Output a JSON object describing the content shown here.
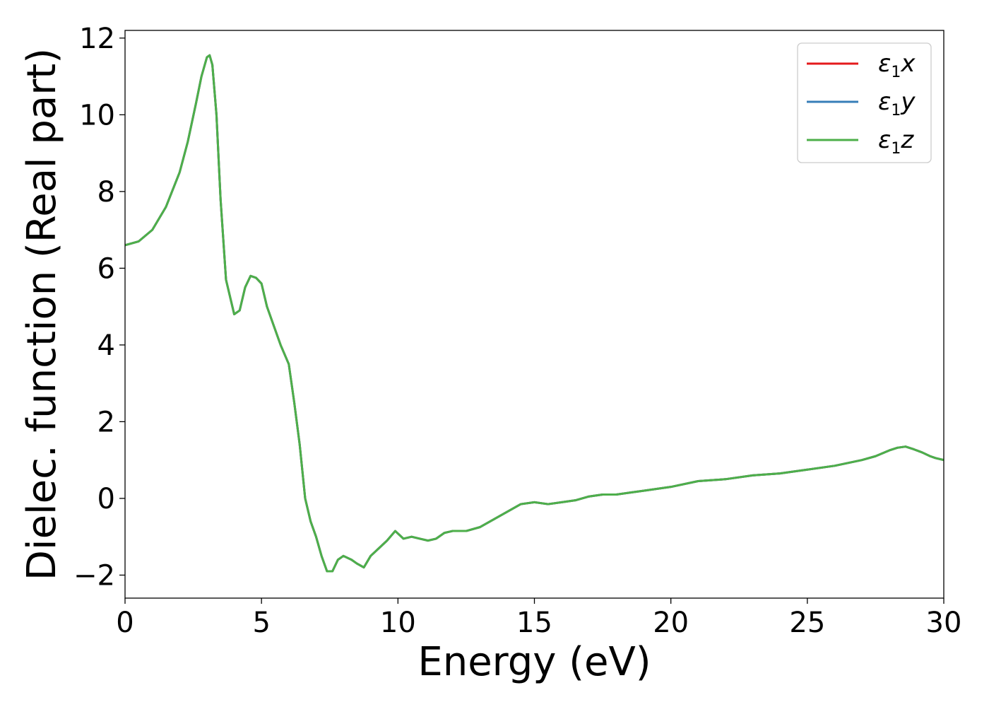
{
  "chart_data": {
    "type": "line",
    "xlabel": "Energy (eV)",
    "ylabel": "Dielec. function (Real part)",
    "xlim": [
      0,
      30
    ],
    "ylim": [
      -2.6,
      12.2
    ],
    "xticks": [
      0,
      5,
      10,
      15,
      20,
      25,
      30
    ],
    "xtick_labels": [
      "0",
      "5",
      "10",
      "15",
      "20",
      "25",
      "30"
    ],
    "yticks": [
      -2,
      0,
      2,
      4,
      6,
      8,
      10,
      12
    ],
    "ytick_labels": [
      "−2",
      "0",
      "2",
      "4",
      "6",
      "8",
      "10",
      "12"
    ],
    "grid": false,
    "legend_position": "top-right",
    "series": [
      {
        "name": "ε1x",
        "name_symbol": "ε",
        "name_sub": "1",
        "name_var": "x",
        "color": "#e41a1c",
        "x": [
          0,
          0.5,
          1.0,
          1.5,
          2.0,
          2.3,
          2.6,
          2.8,
          3.0,
          3.1,
          3.2,
          3.35,
          3.5,
          3.7,
          4.0,
          4.2,
          4.4,
          4.6,
          4.8,
          5.0,
          5.2,
          5.4,
          5.7,
          6.0,
          6.2,
          6.4,
          6.6,
          6.8,
          7.0,
          7.2,
          7.4,
          7.6,
          7.8,
          8.0,
          8.3,
          8.5,
          8.75,
          9.0,
          9.3,
          9.6,
          9.9,
          10.2,
          10.5,
          10.8,
          11.1,
          11.4,
          11.7,
          12.0,
          12.5,
          13.0,
          13.5,
          14.0,
          14.5,
          15.0,
          15.5,
          16.0,
          16.5,
          17.0,
          17.5,
          18.0,
          18.5,
          19.0,
          19.5,
          20.0,
          21.0,
          22.0,
          23.0,
          24.0,
          25.0,
          26.0,
          27.0,
          27.5,
          28.0,
          28.3,
          28.6,
          28.9,
          29.2,
          29.5,
          29.7,
          30.0
        ],
        "y": [
          6.6,
          6.7,
          7.0,
          7.6,
          8.5,
          9.3,
          10.3,
          11.0,
          11.5,
          11.55,
          11.3,
          10.0,
          7.8,
          5.7,
          4.8,
          4.9,
          5.5,
          5.8,
          5.75,
          5.6,
          5.0,
          4.6,
          4.0,
          3.5,
          2.5,
          1.4,
          0.0,
          -0.6,
          -1.0,
          -1.5,
          -1.9,
          -1.9,
          -1.6,
          -1.5,
          -1.6,
          -1.7,
          -1.8,
          -1.5,
          -1.3,
          -1.1,
          -0.85,
          -1.05,
          -1.0,
          -1.05,
          -1.1,
          -1.05,
          -0.9,
          -0.85,
          -0.85,
          -0.75,
          -0.55,
          -0.35,
          -0.15,
          -0.1,
          -0.15,
          -0.1,
          -0.05,
          0.05,
          0.1,
          0.1,
          0.15,
          0.2,
          0.25,
          0.3,
          0.45,
          0.5,
          0.6,
          0.65,
          0.75,
          0.85,
          1.0,
          1.1,
          1.25,
          1.32,
          1.35,
          1.28,
          1.2,
          1.1,
          1.05,
          1.0
        ]
      },
      {
        "name": "ε1y",
        "name_symbol": "ε",
        "name_sub": "1",
        "name_var": "y",
        "color": "#377eb8",
        "x": [
          0,
          0.5,
          1.0,
          1.5,
          2.0,
          2.3,
          2.6,
          2.8,
          3.0,
          3.1,
          3.2,
          3.35,
          3.5,
          3.7,
          4.0,
          4.2,
          4.4,
          4.6,
          4.8,
          5.0,
          5.2,
          5.4,
          5.7,
          6.0,
          6.2,
          6.4,
          6.6,
          6.8,
          7.0,
          7.2,
          7.4,
          7.6,
          7.8,
          8.0,
          8.3,
          8.5,
          8.75,
          9.0,
          9.3,
          9.6,
          9.9,
          10.2,
          10.5,
          10.8,
          11.1,
          11.4,
          11.7,
          12.0,
          12.5,
          13.0,
          13.5,
          14.0,
          14.5,
          15.0,
          15.5,
          16.0,
          16.5,
          17.0,
          17.5,
          18.0,
          18.5,
          19.0,
          19.5,
          20.0,
          21.0,
          22.0,
          23.0,
          24.0,
          25.0,
          26.0,
          27.0,
          27.5,
          28.0,
          28.3,
          28.6,
          28.9,
          29.2,
          29.5,
          29.7,
          30.0
        ],
        "y": [
          6.6,
          6.7,
          7.0,
          7.6,
          8.5,
          9.3,
          10.3,
          11.0,
          11.5,
          11.55,
          11.3,
          10.0,
          7.8,
          5.7,
          4.8,
          4.9,
          5.5,
          5.8,
          5.75,
          5.6,
          5.0,
          4.6,
          4.0,
          3.5,
          2.5,
          1.4,
          0.0,
          -0.6,
          -1.0,
          -1.5,
          -1.9,
          -1.9,
          -1.6,
          -1.5,
          -1.6,
          -1.7,
          -1.8,
          -1.5,
          -1.3,
          -1.1,
          -0.85,
          -1.05,
          -1.0,
          -1.05,
          -1.1,
          -1.05,
          -0.9,
          -0.85,
          -0.85,
          -0.75,
          -0.55,
          -0.35,
          -0.15,
          -0.1,
          -0.15,
          -0.1,
          -0.05,
          0.05,
          0.1,
          0.1,
          0.15,
          0.2,
          0.25,
          0.3,
          0.45,
          0.5,
          0.6,
          0.65,
          0.75,
          0.85,
          1.0,
          1.1,
          1.25,
          1.32,
          1.35,
          1.28,
          1.2,
          1.1,
          1.05,
          1.0
        ]
      },
      {
        "name": "ε1z",
        "name_symbol": "ε",
        "name_sub": "1",
        "name_var": "z",
        "color": "#4daf4a",
        "x": [
          0,
          0.5,
          1.0,
          1.5,
          2.0,
          2.3,
          2.6,
          2.8,
          3.0,
          3.1,
          3.2,
          3.35,
          3.5,
          3.7,
          4.0,
          4.2,
          4.4,
          4.6,
          4.8,
          5.0,
          5.2,
          5.4,
          5.7,
          6.0,
          6.2,
          6.4,
          6.6,
          6.8,
          7.0,
          7.2,
          7.4,
          7.6,
          7.8,
          8.0,
          8.3,
          8.5,
          8.75,
          9.0,
          9.3,
          9.6,
          9.9,
          10.2,
          10.5,
          10.8,
          11.1,
          11.4,
          11.7,
          12.0,
          12.5,
          13.0,
          13.5,
          14.0,
          14.5,
          15.0,
          15.5,
          16.0,
          16.5,
          17.0,
          17.5,
          18.0,
          18.5,
          19.0,
          19.5,
          20.0,
          21.0,
          22.0,
          23.0,
          24.0,
          25.0,
          26.0,
          27.0,
          27.5,
          28.0,
          28.3,
          28.6,
          28.9,
          29.2,
          29.5,
          29.7,
          30.0
        ],
        "y": [
          6.6,
          6.7,
          7.0,
          7.6,
          8.5,
          9.3,
          10.3,
          11.0,
          11.5,
          11.55,
          11.3,
          10.0,
          7.8,
          5.7,
          4.8,
          4.9,
          5.5,
          5.8,
          5.75,
          5.6,
          5.0,
          4.6,
          4.0,
          3.5,
          2.5,
          1.4,
          0.0,
          -0.6,
          -1.0,
          -1.5,
          -1.9,
          -1.9,
          -1.6,
          -1.5,
          -1.6,
          -1.7,
          -1.8,
          -1.5,
          -1.3,
          -1.1,
          -0.85,
          -1.05,
          -1.0,
          -1.05,
          -1.1,
          -1.05,
          -0.9,
          -0.85,
          -0.85,
          -0.75,
          -0.55,
          -0.35,
          -0.15,
          -0.1,
          -0.15,
          -0.1,
          -0.05,
          0.05,
          0.1,
          0.1,
          0.15,
          0.2,
          0.25,
          0.3,
          0.45,
          0.5,
          0.6,
          0.65,
          0.75,
          0.85,
          1.0,
          1.1,
          1.25,
          1.32,
          1.35,
          1.28,
          1.2,
          1.1,
          1.05,
          1.0
        ]
      }
    ]
  }
}
